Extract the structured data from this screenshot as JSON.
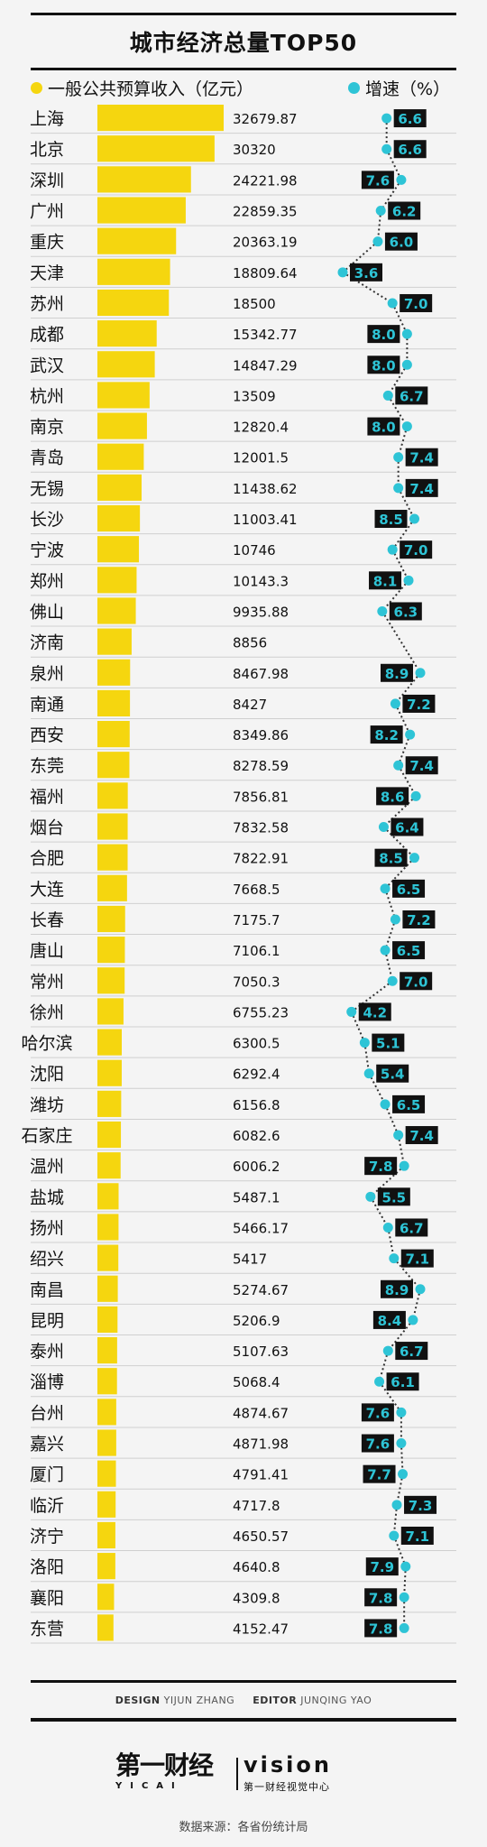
{
  "header": {
    "title": "城市经济总量TOP50",
    "legend_left": "一般公共预算收入（亿元）",
    "legend_right": "增速（%）"
  },
  "colors": {
    "bar": "#f5d60f",
    "growth_dot": "#2ec4d6",
    "growth_label_bg": "#111111",
    "growth_label_text": "#2ec4d6"
  },
  "chart_data": {
    "type": "bar",
    "title": "城市经济总量TOP50",
    "categories": [
      "上海",
      "北京",
      "深圳",
      "广州",
      "重庆",
      "天津",
      "苏州",
      "成都",
      "武汉",
      "杭州",
      "南京",
      "青岛",
      "无锡",
      "长沙",
      "宁波",
      "郑州",
      "佛山",
      "济南",
      "泉州",
      "南通",
      "西安",
      "东莞",
      "福州",
      "烟台",
      "合肥",
      "大连",
      "长春",
      "唐山",
      "常州",
      "徐州",
      "哈尔滨",
      "沈阳",
      "潍坊",
      "石家庄",
      "温州",
      "盐城",
      "扬州",
      "绍兴",
      "南昌",
      "昆明",
      "泰州",
      "淄博",
      "台州",
      "嘉兴",
      "厦门",
      "临沂",
      "济宁",
      "洛阳",
      "襄阳",
      "东营"
    ],
    "revenue_labels": [
      "32679.87",
      "30320",
      "24221.98",
      "22859.35",
      "20363.19",
      "18809.64",
      "18500",
      "15342.77",
      "14847.29",
      "13509",
      "12820.4",
      "12001.5",
      "11438.62",
      "11003.41",
      "10746",
      "10143.3",
      "9935.88",
      "8856",
      "8467.98",
      "8427",
      "8349.86",
      "8278.59",
      "7856.81",
      "7832.58",
      "7822.91",
      "7668.5",
      "7175.7",
      "7106.1",
      "7050.3",
      "6755.23",
      "6300.5",
      "6292.4",
      "6156.8",
      "6082.6",
      "6006.2",
      "5487.1",
      "5466.17",
      "5417",
      "5274.67",
      "5206.9",
      "5107.63",
      "5068.4",
      "4874.67",
      "4871.98",
      "4791.41",
      "4717.8",
      "4650.57",
      "4640.8",
      "4309.8",
      "4152.47"
    ],
    "series": [
      {
        "name": "一般公共预算收入（亿元）",
        "values": [
          32679.87,
          30320,
          24221.98,
          22859.35,
          20363.19,
          18809.64,
          18500,
          15342.77,
          14847.29,
          13509,
          12820.4,
          12001.5,
          11438.62,
          11003.41,
          10746,
          10143.3,
          9935.88,
          8856,
          8467.98,
          8427,
          8349.86,
          8278.59,
          7856.81,
          7832.58,
          7822.91,
          7668.5,
          7175.7,
          7106.1,
          7050.3,
          6755.23,
          6300.5,
          6292.4,
          6156.8,
          6082.6,
          6006.2,
          5487.1,
          5466.17,
          5417,
          5274.67,
          5206.9,
          5107.63,
          5068.4,
          4874.67,
          4871.98,
          4791.41,
          4717.8,
          4650.57,
          4640.8,
          4309.8,
          4152.47
        ]
      },
      {
        "name": "增速（%）",
        "values": [
          6.6,
          6.6,
          7.6,
          6.2,
          6.0,
          3.6,
          7.0,
          8.0,
          8.0,
          6.7,
          8.0,
          7.4,
          7.4,
          8.5,
          7.0,
          8.1,
          6.3,
          null,
          8.9,
          7.2,
          8.2,
          7.4,
          8.6,
          6.4,
          8.5,
          6.5,
          7.2,
          6.5,
          7.0,
          4.2,
          5.1,
          5.4,
          6.5,
          7.4,
          7.8,
          5.5,
          6.7,
          7.1,
          8.9,
          8.4,
          6.7,
          6.1,
          7.6,
          7.6,
          7.7,
          7.3,
          7.1,
          7.9,
          7.8,
          7.8
        ]
      }
    ],
    "growth_labels": [
      "6.6",
      "6.6",
      "7.6",
      "6.2",
      "6.0",
      "3.6",
      "7.0",
      "8.0",
      "8.0",
      "6.7",
      "8.0",
      "7.4",
      "7.4",
      "8.5",
      "7.0",
      "8.1",
      "6.3",
      "",
      "8.9",
      "7.2",
      "8.2",
      "7.4",
      "8.6",
      "6.4",
      "8.5",
      "6.5",
      "7.2",
      "6.5",
      "7.0",
      "4.2",
      "5.1",
      "5.4",
      "6.5",
      "7.4",
      "7.8",
      "5.5",
      "6.7",
      "7.1",
      "8.9",
      "8.4",
      "6.7",
      "6.1",
      "7.6",
      "7.6",
      "7.7",
      "7.3",
      "7.1",
      "7.9",
      "7.8",
      "7.8"
    ]
  },
  "footer": {
    "design_label": "DESIGN",
    "design_name": "YIJUN ZHANG",
    "editor_label": "EDITOR",
    "editor_name": "JUNQING YAO",
    "logo_yicai": "第一财经",
    "logo_yicai_sub": "YICAI",
    "logo_vision": "vision",
    "logo_vision_sub": "第一财经视觉中心",
    "source": "数据来源：各省份统计局"
  }
}
